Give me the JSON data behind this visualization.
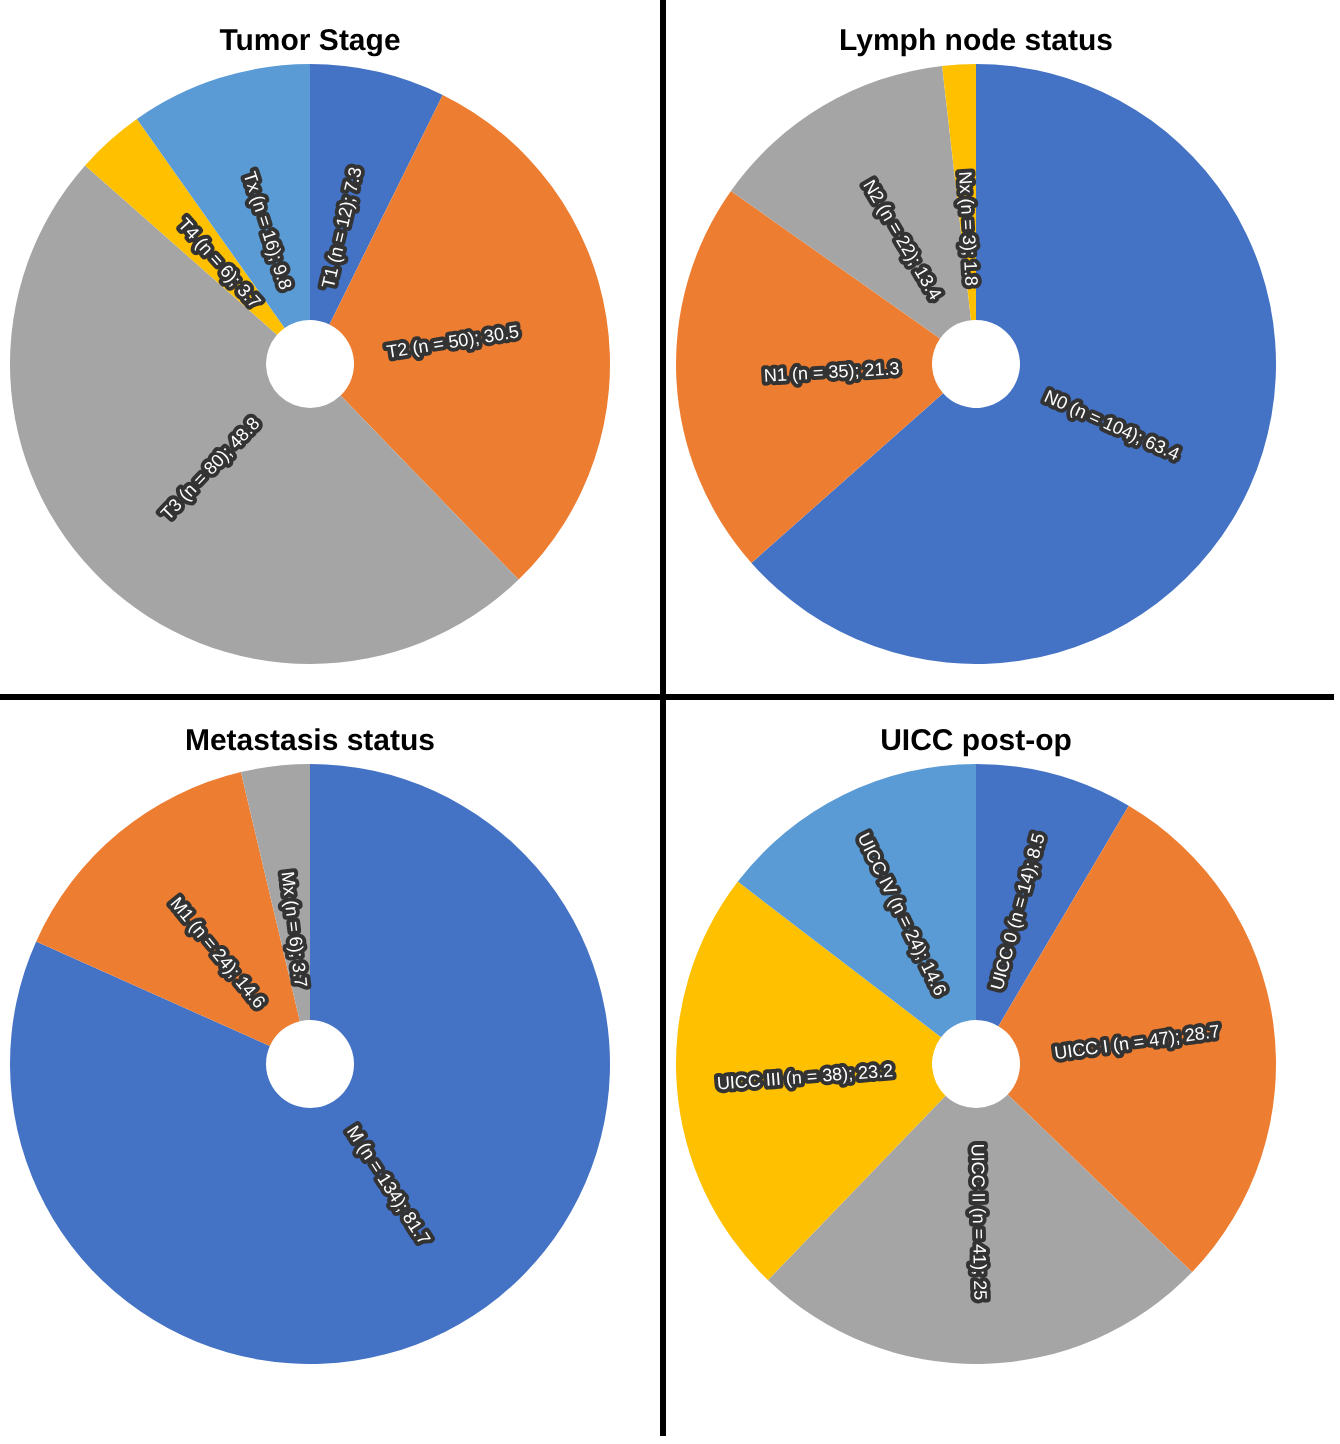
{
  "chart_data": [
    {
      "type": "donut",
      "title": "Tumor Stage",
      "categories": [
        "T1 (n = 12); 7.3",
        "T2 (n = 50); 30.5",
        "T3 (n = 80); 48.8",
        "T4 (n = 6); 3.7",
        "Tx (n = 16); 9.8"
      ],
      "values": [
        7.3,
        30.5,
        48.8,
        3.7,
        9.8
      ],
      "colors": [
        "#4472c4",
        "#ed7d31",
        "#a5a5a5",
        "#ffc000",
        "#5b9bd5"
      ],
      "legend": false
    },
    {
      "type": "donut",
      "title": "Lymph node status",
      "categories": [
        "N0 (n = 104); 63.4",
        "N1 (n = 35); 21.3",
        "N2 (n = 22); 13.4",
        "Nx (n = 3); 1.8"
      ],
      "values": [
        63.4,
        21.3,
        13.4,
        1.8
      ],
      "colors": [
        "#4472c4",
        "#ed7d31",
        "#a5a5a5",
        "#ffc000"
      ],
      "legend": false
    },
    {
      "type": "donut",
      "title": "Metastasis status",
      "categories": [
        "M (n = 134); 81.7",
        "M1 (n = 24); 14.6",
        "Mx (n = 6); 3.7"
      ],
      "values": [
        81.7,
        14.6,
        3.7
      ],
      "colors": [
        "#4472c4",
        "#ed7d31",
        "#a5a5a5"
      ],
      "legend": false
    },
    {
      "type": "donut",
      "title": "UICC post-op",
      "categories": [
        "UICC 0 (n = 14); 8.5",
        "UICC I (n = 47); 28.7",
        "UICC II (n = 41); 25",
        "UICC III (n = 38); 23.2",
        "UICC IV (n = 24); 14.6"
      ],
      "values": [
        8.5,
        28.7,
        25,
        23.2,
        14.6
      ],
      "colors": [
        "#4472c4",
        "#ed7d31",
        "#a5a5a5",
        "#ffc000",
        "#5b9bd5"
      ],
      "legend": false
    }
  ]
}
